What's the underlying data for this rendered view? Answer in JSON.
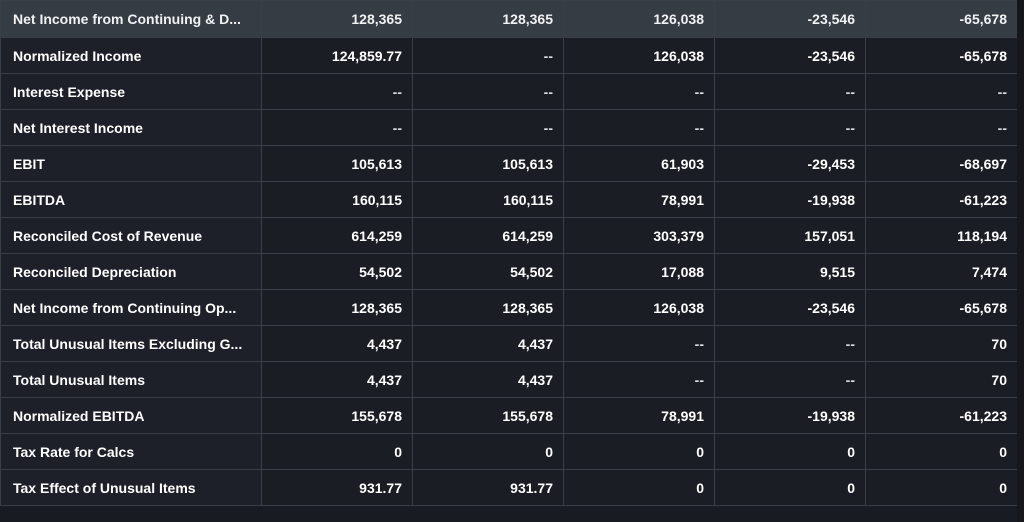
{
  "columns": 5,
  "rows": [
    {
      "label": "Net Income from Continuing & D...",
      "values": [
        "128,365",
        "128,365",
        "126,038",
        "-23,546",
        "-65,678"
      ]
    },
    {
      "label": "Normalized Income",
      "values": [
        "124,859.77",
        "--",
        "126,038",
        "-23,546",
        "-65,678"
      ]
    },
    {
      "label": "Interest Expense",
      "values": [
        "--",
        "--",
        "--",
        "--",
        "--"
      ]
    },
    {
      "label": "Net Interest Income",
      "values": [
        "--",
        "--",
        "--",
        "--",
        "--"
      ]
    },
    {
      "label": "EBIT",
      "values": [
        "105,613",
        "105,613",
        "61,903",
        "-29,453",
        "-68,697"
      ]
    },
    {
      "label": "EBITDA",
      "values": [
        "160,115",
        "160,115",
        "78,991",
        "-19,938",
        "-61,223"
      ]
    },
    {
      "label": "Reconciled Cost of Revenue",
      "values": [
        "614,259",
        "614,259",
        "303,379",
        "157,051",
        "118,194"
      ]
    },
    {
      "label": "Reconciled Depreciation",
      "values": [
        "54,502",
        "54,502",
        "17,088",
        "9,515",
        "7,474"
      ]
    },
    {
      "label": "Net Income from Continuing Op...",
      "values": [
        "128,365",
        "128,365",
        "126,038",
        "-23,546",
        "-65,678"
      ]
    },
    {
      "label": "Total Unusual Items Excluding G...",
      "values": [
        "4,437",
        "4,437",
        "--",
        "--",
        "70"
      ]
    },
    {
      "label": "Total Unusual Items",
      "values": [
        "4,437",
        "4,437",
        "--",
        "--",
        "70"
      ]
    },
    {
      "label": "Normalized EBITDA",
      "values": [
        "155,678",
        "155,678",
        "78,991",
        "-19,938",
        "-61,223"
      ]
    },
    {
      "label": "Tax Rate for Calcs",
      "values": [
        "0",
        "0",
        "0",
        "0",
        "0"
      ]
    },
    {
      "label": "Tax Effect of Unusual Items",
      "values": [
        "931.77",
        "931.77",
        "0",
        "0",
        "0"
      ]
    }
  ]
}
